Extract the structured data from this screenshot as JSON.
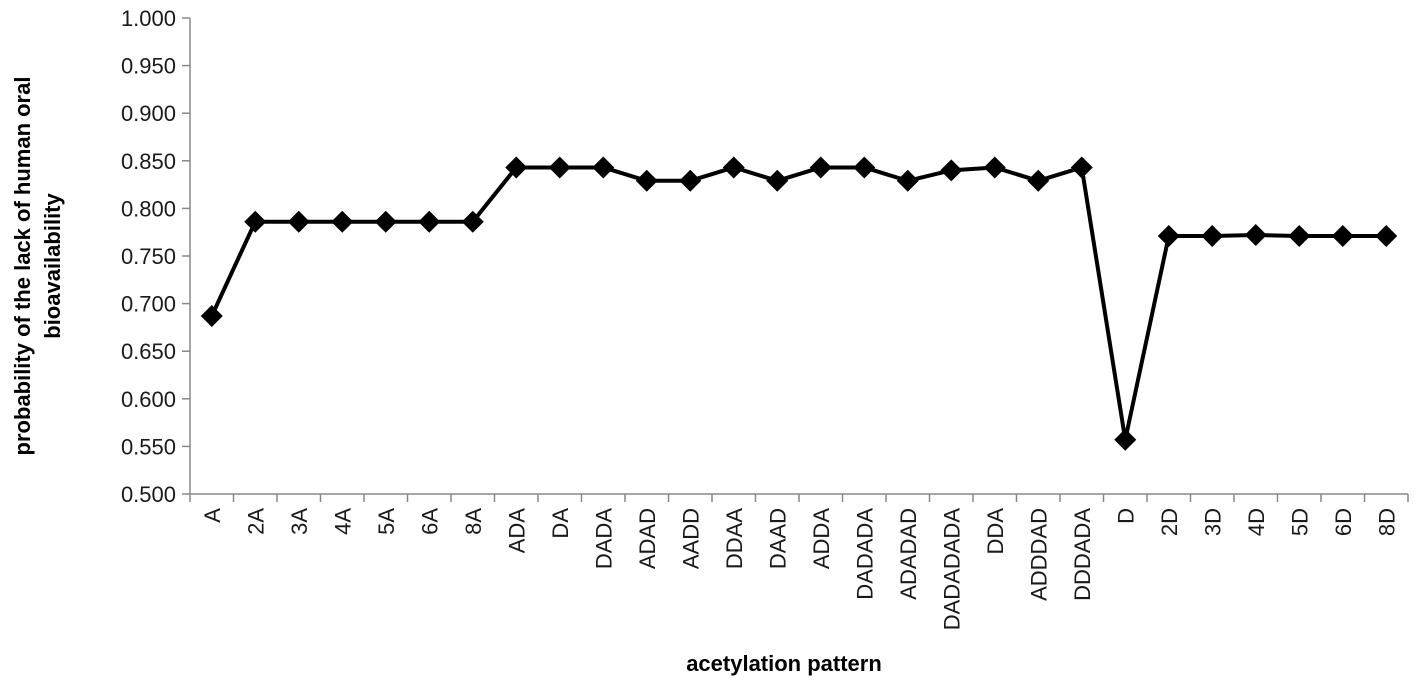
{
  "chart_data": {
    "type": "line",
    "xlabel": "acetylation pattern",
    "ylabel_lines": [
      "probability  of the lack of human oral",
      "bioavailability"
    ],
    "ylim": [
      0.5,
      1.0
    ],
    "ytick_step": 0.05,
    "ytick_labels": [
      "0.500",
      "0.550",
      "0.600",
      "0.650",
      "0.700",
      "0.750",
      "0.800",
      "0.850",
      "0.900",
      "0.950",
      "1.000"
    ],
    "grid": false,
    "legend": "none",
    "marker": "diamond",
    "colors": {
      "line": "#000000",
      "axis": "#888888",
      "text": "#1a1a1a"
    },
    "categories": [
      "A",
      "2A",
      "3A",
      "4A",
      "5A",
      "6A",
      "8A",
      "ADA",
      "DA",
      "DADA",
      "ADAD",
      "AADD",
      "DDAA",
      "DAAD",
      "ADDA",
      "DADADA",
      "ADADAD",
      "DADADADA",
      "DDA",
      "ADDDAD",
      "DDDADA",
      "D",
      "2D",
      "3D",
      "4D",
      "5D",
      "6D",
      "8D"
    ],
    "values": [
      0.687,
      0.786,
      0.786,
      0.786,
      0.786,
      0.786,
      0.786,
      0.843,
      0.843,
      0.843,
      0.829,
      0.829,
      0.843,
      0.829,
      0.843,
      0.843,
      0.829,
      0.84,
      0.843,
      0.829,
      0.843,
      0.557,
      0.771,
      0.771,
      0.772,
      0.771,
      0.771,
      0.771
    ]
  }
}
